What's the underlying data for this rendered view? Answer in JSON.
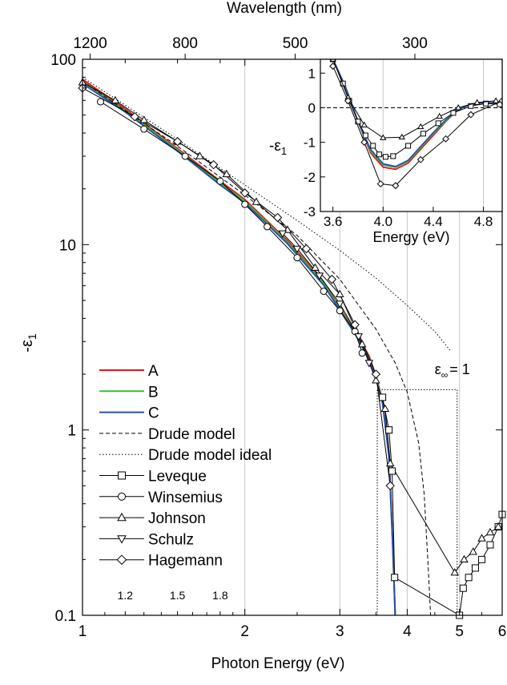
{
  "chart_data": {
    "type": "line",
    "xlabel": "Photon Energy (eV)",
    "ylabel": "-ε",
    "ylabel_sub": "1",
    "top_xlabel": "Wavelength (nm)",
    "xscale": "log",
    "yscale": "log",
    "xlim": [
      1,
      6
    ],
    "ylim": [
      0.1,
      100
    ],
    "x_ticks": [
      {
        "value": 1,
        "label": "1",
        "major": true
      },
      {
        "value": 1.2,
        "label": "1.2",
        "major": false
      },
      {
        "value": 1.5,
        "label": "1.5",
        "major": false
      },
      {
        "value": 1.8,
        "label": "1.8",
        "major": false
      },
      {
        "value": 2,
        "label": "2",
        "major": true
      },
      {
        "value": 3,
        "label": "3",
        "major": true
      },
      {
        "value": 4,
        "label": "4",
        "major": true
      },
      {
        "value": 5,
        "label": "5",
        "major": true
      },
      {
        "value": 6,
        "label": "6",
        "major": true
      }
    ],
    "y_ticks": [
      {
        "value": 0.1,
        "label": "0.1"
      },
      {
        "value": 1,
        "label": "1"
      },
      {
        "value": 10,
        "label": "10"
      },
      {
        "value": 100,
        "label": "100"
      }
    ],
    "top_ticks": [
      {
        "wavelength": 1200,
        "label": "1200"
      },
      {
        "wavelength": 800,
        "label": "800"
      },
      {
        "wavelength": 500,
        "label": "500"
      },
      {
        "wavelength": 300,
        "label": "300"
      }
    ],
    "vertical_gridlines_x": [
      2,
      3,
      4,
      5
    ],
    "annotation": {
      "text": "ε",
      "sub": "∞",
      "suffix": "= 1",
      "x": 4.85,
      "y": 2.0
    },
    "ideal_box": {
      "x1": 3.52,
      "x2": 4.95,
      "y_top": 1.65
    },
    "legend": {
      "position": "left-center",
      "entries": [
        {
          "label": "A",
          "style": "line",
          "color": "#e8141c"
        },
        {
          "label": "B",
          "style": "line",
          "color": "#38c03a"
        },
        {
          "label": "C",
          "style": "line",
          "color": "#2a4fa8"
        },
        {
          "label": "Drude model",
          "style": "dashed",
          "color": "#000000"
        },
        {
          "label": "Drude model ideal",
          "style": "dotted",
          "color": "#000000"
        },
        {
          "label": "Leveque",
          "style": "marker",
          "marker": "square"
        },
        {
          "label": "Winsemius",
          "style": "marker",
          "marker": "circle"
        },
        {
          "label": "Johnson",
          "style": "marker",
          "marker": "triangle-up"
        },
        {
          "label": "Schulz",
          "style": "marker",
          "marker": "triangle-down"
        },
        {
          "label": "Hagemann",
          "style": "marker",
          "marker": "diamond"
        }
      ]
    },
    "series": [
      {
        "name": "A",
        "color": "#e8141c",
        "x": [
          1.0,
          1.2,
          1.5,
          1.8,
          2.0,
          2.4,
          2.8,
          3.2,
          3.4,
          3.5,
          3.6,
          3.7,
          3.76,
          3.8
        ],
        "y": [
          78,
          54,
          33,
          22,
          17.5,
          10.5,
          6.3,
          3.4,
          2.5,
          1.95,
          1.45,
          0.75,
          0.25,
          0.1
        ]
      },
      {
        "name": "B",
        "color": "#38c03a",
        "x": [
          1.0,
          1.2,
          1.5,
          1.8,
          2.0,
          2.4,
          2.8,
          3.2,
          3.4,
          3.5,
          3.6,
          3.7,
          3.76,
          3.8
        ],
        "y": [
          76,
          53,
          32.5,
          21.5,
          17.2,
          10.3,
          6.2,
          3.35,
          2.45,
          1.92,
          1.42,
          0.73,
          0.24,
          0.1
        ]
      },
      {
        "name": "C",
        "color": "#2a4fa8",
        "x": [
          1.0,
          1.2,
          1.5,
          1.8,
          2.0,
          2.4,
          2.8,
          3.2,
          3.4,
          3.5,
          3.6,
          3.7,
          3.76,
          3.8
        ],
        "y": [
          74,
          52,
          32,
          21,
          16.8,
          10.1,
          6.05,
          3.3,
          2.4,
          1.9,
          1.4,
          0.72,
          0.24,
          0.1
        ]
      },
      {
        "name": "Drude model",
        "style": "dashed",
        "x": [
          1.0,
          1.2,
          1.5,
          2.0,
          2.5,
          3.0,
          3.5,
          3.8,
          4.0,
          4.2,
          4.3,
          4.38,
          4.42
        ],
        "y": [
          76,
          53,
          34,
          18.5,
          11.2,
          6.5,
          3.5,
          2.3,
          1.6,
          0.85,
          0.45,
          0.17,
          0.1
        ]
      },
      {
        "name": "Drude model ideal",
        "style": "dotted",
        "x": [
          1.0,
          1.5,
          2.0,
          2.5,
          3.0,
          3.5,
          4.0,
          4.5,
          4.8
        ],
        "y": [
          80,
          37,
          21,
          13.5,
          9.3,
          6.6,
          4.7,
          3.4,
          2.7
        ]
      },
      {
        "name": "Leveque",
        "marker": "square",
        "x": [
          3.6,
          3.7,
          3.75,
          3.79,
          5.0,
          5.08,
          5.2,
          5.35,
          5.5,
          5.7,
          5.9,
          6.0
        ],
        "y": [
          1.5,
          1.0,
          0.6,
          0.16,
          0.1,
          0.14,
          0.16,
          0.18,
          0.2,
          0.24,
          0.3,
          0.35
        ]
      },
      {
        "name": "Winsemius",
        "marker": "circle",
        "x": [
          1.08,
          1.3,
          1.55,
          1.8,
          2.0,
          2.2,
          2.5,
          2.8,
          3.0,
          3.2,
          3.3
        ],
        "y": [
          59,
          42,
          30,
          22,
          16.5,
          12.5,
          8.5,
          5.6,
          4.4,
          3.4,
          2.6
        ]
      },
      {
        "name": "Johnson",
        "marker": "triangle-up",
        "x": [
          1.0,
          1.15,
          1.3,
          1.5,
          1.65,
          1.85,
          2.1,
          2.4,
          2.7,
          3.0,
          3.3,
          3.5,
          3.64,
          3.72,
          4.9,
          5.1,
          5.3,
          5.5,
          5.7,
          5.9
        ],
        "y": [
          75,
          60,
          47,
          36,
          30,
          24,
          17,
          12,
          7.5,
          5.4,
          2.9,
          1.85,
          1.3,
          0.66,
          0.17,
          0.2,
          0.22,
          0.26,
          0.28,
          0.3
        ]
      },
      {
        "name": "Schulz",
        "marker": "triangle-down",
        "x": [
          2.35,
          2.5,
          2.75,
          3.0,
          3.25,
          3.4
        ],
        "y": [
          11.5,
          9.5,
          6.8,
          4.8,
          3.2,
          2.3
        ]
      },
      {
        "name": "Hagemann",
        "marker": "diamond",
        "x": [
          1.0,
          1.25,
          1.5,
          1.75,
          2.0,
          2.3,
          2.6,
          2.9,
          3.2,
          3.5,
          3.72
        ],
        "y": [
          70,
          49,
          36,
          27,
          19,
          14,
          9.5,
          6.5,
          3.7,
          2.0,
          0.5
        ]
      }
    ],
    "inset": {
      "xlabel": "Energy (eV)",
      "ylabel": "-ε",
      "ylabel_sub": "1",
      "xlim": [
        3.5,
        4.95
      ],
      "ylim": [
        -3,
        1.4
      ],
      "x_ticks": [
        {
          "value": 3.6,
          "label": "3.6"
        },
        {
          "value": 4.0,
          "label": "4.0"
        },
        {
          "value": 4.4,
          "label": "4.4"
        },
        {
          "value": 4.8,
          "label": "4.8"
        }
      ],
      "y_ticks": [
        {
          "value": 1,
          "label": "1"
        },
        {
          "value": 0,
          "label": "0"
        },
        {
          "value": -1,
          "label": "-1"
        },
        {
          "value": -2,
          "label": "-2"
        },
        {
          "value": -3,
          "label": "-3"
        }
      ],
      "zero_line": "dashed",
      "series": [
        {
          "name": "A",
          "color": "#e8141c",
          "x": [
            3.6,
            3.7,
            3.8,
            3.9,
            4.0,
            4.1,
            4.2,
            4.3,
            4.4,
            4.5,
            4.6,
            4.7,
            4.8,
            4.95
          ],
          "y": [
            1.4,
            0.6,
            -0.4,
            -1.3,
            -1.72,
            -1.78,
            -1.6,
            -1.2,
            -0.8,
            -0.4,
            -0.05,
            0.1,
            0.14,
            0.15
          ]
        },
        {
          "name": "B",
          "color": "#38c03a",
          "x": [
            3.6,
            3.7,
            3.8,
            3.9,
            4.0,
            4.1,
            4.2,
            4.3,
            4.4,
            4.5,
            4.6,
            4.7,
            4.8,
            4.95
          ],
          "y": [
            1.4,
            0.6,
            -0.4,
            -1.25,
            -1.66,
            -1.72,
            -1.55,
            -1.15,
            -0.75,
            -0.38,
            -0.05,
            0.1,
            0.14,
            0.15
          ]
        },
        {
          "name": "C",
          "color": "#2a4fa8",
          "x": [
            3.6,
            3.7,
            3.8,
            3.9,
            4.0,
            4.1,
            4.2,
            4.3,
            4.4,
            4.5,
            4.6,
            4.7,
            4.8,
            4.95
          ],
          "y": [
            1.4,
            0.6,
            -0.4,
            -1.2,
            -1.62,
            -1.7,
            -1.52,
            -1.12,
            -0.72,
            -0.35,
            -0.05,
            0.1,
            0.14,
            0.15
          ]
        },
        {
          "name": "Leveque",
          "marker": "square",
          "x": [
            3.6,
            3.68,
            3.73,
            3.8,
            3.86,
            3.92,
            3.97,
            4.02,
            4.08,
            4.2,
            4.32,
            4.44,
            4.56,
            4.7,
            4.82,
            4.93
          ],
          "y": [
            1.4,
            0.7,
            0.2,
            -0.4,
            -0.8,
            -1.1,
            -1.35,
            -1.42,
            -1.4,
            -1.1,
            -0.75,
            -0.45,
            -0.15,
            0.05,
            0.12,
            0.1
          ]
        },
        {
          "name": "Johnson",
          "marker": "triangle-up",
          "x": [
            3.6,
            3.72,
            3.85,
            4.0,
            4.15,
            4.3,
            4.45,
            4.6,
            4.75,
            4.9
          ],
          "y": [
            1.4,
            0.3,
            -0.5,
            -0.87,
            -0.85,
            -0.55,
            -0.25,
            0.0,
            0.15,
            0.2
          ]
        },
        {
          "name": "Hagemann",
          "marker": "diamond",
          "x": [
            3.6,
            3.72,
            3.85,
            3.98,
            4.1,
            4.3,
            4.5,
            4.7,
            4.95
          ],
          "y": [
            1.2,
            0.2,
            -1.0,
            -2.2,
            -2.25,
            -1.5,
            -0.9,
            -0.2,
            0.2
          ]
        }
      ]
    }
  }
}
